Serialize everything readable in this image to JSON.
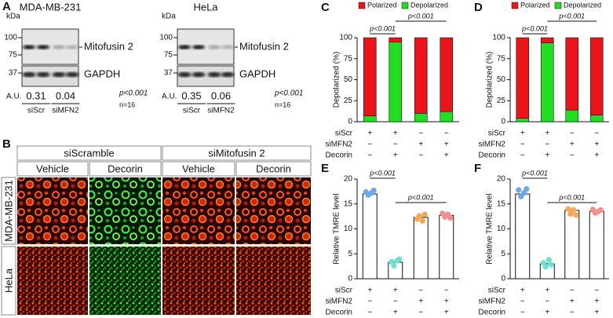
{
  "panels": {
    "A": {
      "label": "A",
      "blots": [
        {
          "title": "MDA-MB-231",
          "unit": "kDa",
          "markers": [
            100,
            75,
            37
          ],
          "bands": [
            "Mitofusin 2",
            "GAPDH"
          ],
          "au_label": "A.U.",
          "au_values": [
            0.31,
            0.04
          ],
          "groups": [
            "siScr",
            "siMFN2"
          ],
          "p": "p<0.001",
          "n": "n=16"
        },
        {
          "title": "HeLa",
          "unit": "kDa",
          "markers": [
            100,
            75,
            37
          ],
          "bands": [
            "Mitofusin 2",
            "GAPDH"
          ],
          "au_label": "A.U.",
          "au_values": [
            0.35,
            0.06
          ],
          "groups": [
            "siScr",
            "siMFN2"
          ],
          "p": "p<0.001",
          "n": "n=16"
        }
      ]
    },
    "B": {
      "label": "B",
      "groups": [
        "siScramble",
        "siMitofusin 2"
      ],
      "treatments": [
        "Vehicle",
        "Decorin",
        "Vehicle",
        "Decorin"
      ],
      "cell_lines": [
        "MDA-MB-231",
        "HeLa"
      ]
    }
  },
  "chart_data": [
    {
      "label": "C",
      "type": "bar",
      "stacked": true,
      "ylabel": "Depolarized (%)",
      "series": [
        {
          "name": "Polarized",
          "color": "#e8161b",
          "values": [
            93,
            5,
            90,
            88
          ]
        },
        {
          "name": "Depolarized",
          "color": "#22dd22",
          "values": [
            7,
            95,
            10,
            12
          ]
        }
      ],
      "ylim": [
        0,
        100
      ],
      "yticks": [
        0,
        25,
        50,
        75,
        100
      ],
      "annotations": [
        "p<0.001",
        "p<0.001"
      ],
      "conditions": [
        {
          "name": "siScr",
          "values": [
            "+",
            "+",
            "−",
            "−"
          ]
        },
        {
          "name": "siMFN2",
          "values": [
            "−",
            "−",
            "+",
            "+"
          ]
        },
        {
          "name": "Decorin",
          "values": [
            "−",
            "+",
            "−",
            "+"
          ]
        }
      ]
    },
    {
      "label": "D",
      "type": "bar",
      "stacked": true,
      "ylabel": "Depolarized (%)",
      "series": [
        {
          "name": "Polarized",
          "color": "#e8161b",
          "values": [
            96,
            6,
            86,
            92
          ]
        },
        {
          "name": "Depolarized",
          "color": "#22dd22",
          "values": [
            4,
            94,
            14,
            8
          ]
        }
      ],
      "ylim": [
        0,
        100
      ],
      "yticks": [
        0,
        25,
        50,
        75,
        100
      ],
      "annotations": [
        "p<0.001",
        "p<0.001"
      ],
      "conditions": [
        {
          "name": "siScr",
          "values": [
            "+",
            "+",
            "−",
            "−"
          ]
        },
        {
          "name": "siMFN2",
          "values": [
            "−",
            "−",
            "+",
            "+"
          ]
        },
        {
          "name": "Decorin",
          "values": [
            "−",
            "+",
            "−",
            "+"
          ]
        }
      ]
    },
    {
      "label": "E",
      "type": "bar",
      "stacked": false,
      "ylabel": "Relative TMRE level",
      "values": [
        17,
        3.3,
        12.3,
        12.7
      ],
      "color": "#ffffff",
      "points": [
        [
          17.4,
          16.8,
          17.2,
          17.7
        ],
        [
          3.4,
          2.6,
          3.6,
          3.9
        ],
        [
          12.0,
          12.6,
          11.6,
          12.9
        ],
        [
          13.1,
          12.4,
          12.9,
          12.2
        ]
      ],
      "point_colors": [
        "#6fa8e8",
        "#6ee0d0",
        "#f5a75a",
        "#f28f8f"
      ],
      "ylim": [
        0,
        20
      ],
      "yticks": [
        0,
        5,
        10,
        15,
        20
      ],
      "annotations": [
        "p<0.001",
        "p<0.001"
      ],
      "conditions": [
        {
          "name": "siScr",
          "values": [
            "+",
            "+",
            "−",
            "−"
          ]
        },
        {
          "name": "siMFN2",
          "values": [
            "−",
            "−",
            "+",
            "+"
          ]
        },
        {
          "name": "Decorin",
          "values": [
            "−",
            "+",
            "−",
            "+"
          ]
        }
      ]
    },
    {
      "label": "F",
      "type": "bar",
      "stacked": false,
      "ylabel": "Relative TMRE level",
      "values": [
        17,
        3,
        13.7,
        13.5
      ],
      "color": "#ffffff",
      "points": [
        [
          17.8,
          16.5,
          17.2,
          18.0
        ],
        [
          3.2,
          2.4,
          3.8,
          2.8
        ],
        [
          14.0,
          13.0,
          13.8,
          12.8
        ],
        [
          13.9,
          13.2,
          13.5,
          13.8
        ]
      ],
      "point_colors": [
        "#6fa8e8",
        "#6ee0d0",
        "#f5a75a",
        "#f28f8f"
      ],
      "ylim": [
        0,
        20
      ],
      "yticks": [
        0,
        5,
        10,
        15,
        20
      ],
      "annotations": [
        "p<0.001",
        "p<0.001"
      ],
      "conditions": [
        {
          "name": "siScr",
          "values": [
            "+",
            "+",
            "−",
            "−"
          ]
        },
        {
          "name": "siMFN2",
          "values": [
            "−",
            "−",
            "+",
            "+"
          ]
        },
        {
          "name": "Decorin",
          "values": [
            "−",
            "+",
            "−",
            "+"
          ]
        }
      ]
    }
  ]
}
